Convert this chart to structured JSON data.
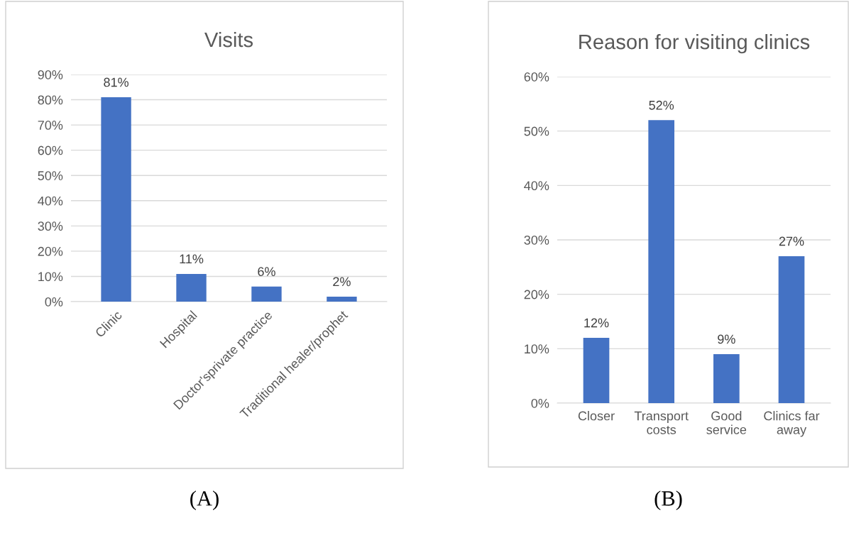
{
  "chart_data": [
    {
      "type": "bar",
      "title": "Visits",
      "categories": [
        "Clinic",
        "Hospital",
        "Doctor'sprivate practice",
        "Traditional healer/prophet"
      ],
      "values": [
        81,
        11,
        6,
        2
      ],
      "color": "#4472c4",
      "value_labels": [
        "81%",
        "11%",
        "6%",
        "2%"
      ],
      "ylim": [
        0,
        90
      ],
      "yticks": [
        {
          "value": 0,
          "label": "0%"
        },
        {
          "value": 10,
          "label": "10%"
        },
        {
          "value": 20,
          "label": "20%"
        },
        {
          "value": 30,
          "label": "30%"
        },
        {
          "value": 40,
          "label": "40%"
        },
        {
          "value": 50,
          "label": "50%"
        },
        {
          "value": 60,
          "label": "60%"
        },
        {
          "value": 70,
          "label": "70%"
        },
        {
          "value": 80,
          "label": "80%"
        },
        {
          "value": 90,
          "label": "90%"
        }
      ],
      "grid": "y",
      "annotations": [
        "(A)"
      ]
    },
    {
      "type": "bar",
      "title": "Reason for visiting clinics",
      "categories": [
        "Closer",
        "Transport\ncosts",
        "Good\nservice",
        "Clinics far\naway"
      ],
      "values": [
        12,
        52,
        9,
        27
      ],
      "color": "#4472c4",
      "value_labels": [
        "12%",
        "52%",
        "9%",
        "27%"
      ],
      "ylim": [
        0,
        60
      ],
      "yticks": [
        {
          "value": 0,
          "label": "0%"
        },
        {
          "value": 10,
          "label": "10%"
        },
        {
          "value": 20,
          "label": "20%"
        },
        {
          "value": 30,
          "label": "30%"
        },
        {
          "value": 40,
          "label": "40%"
        },
        {
          "value": 50,
          "label": "50%"
        },
        {
          "value": 60,
          "label": "60%"
        }
      ],
      "grid": "y",
      "annotations": [
        "(B)"
      ]
    }
  ]
}
